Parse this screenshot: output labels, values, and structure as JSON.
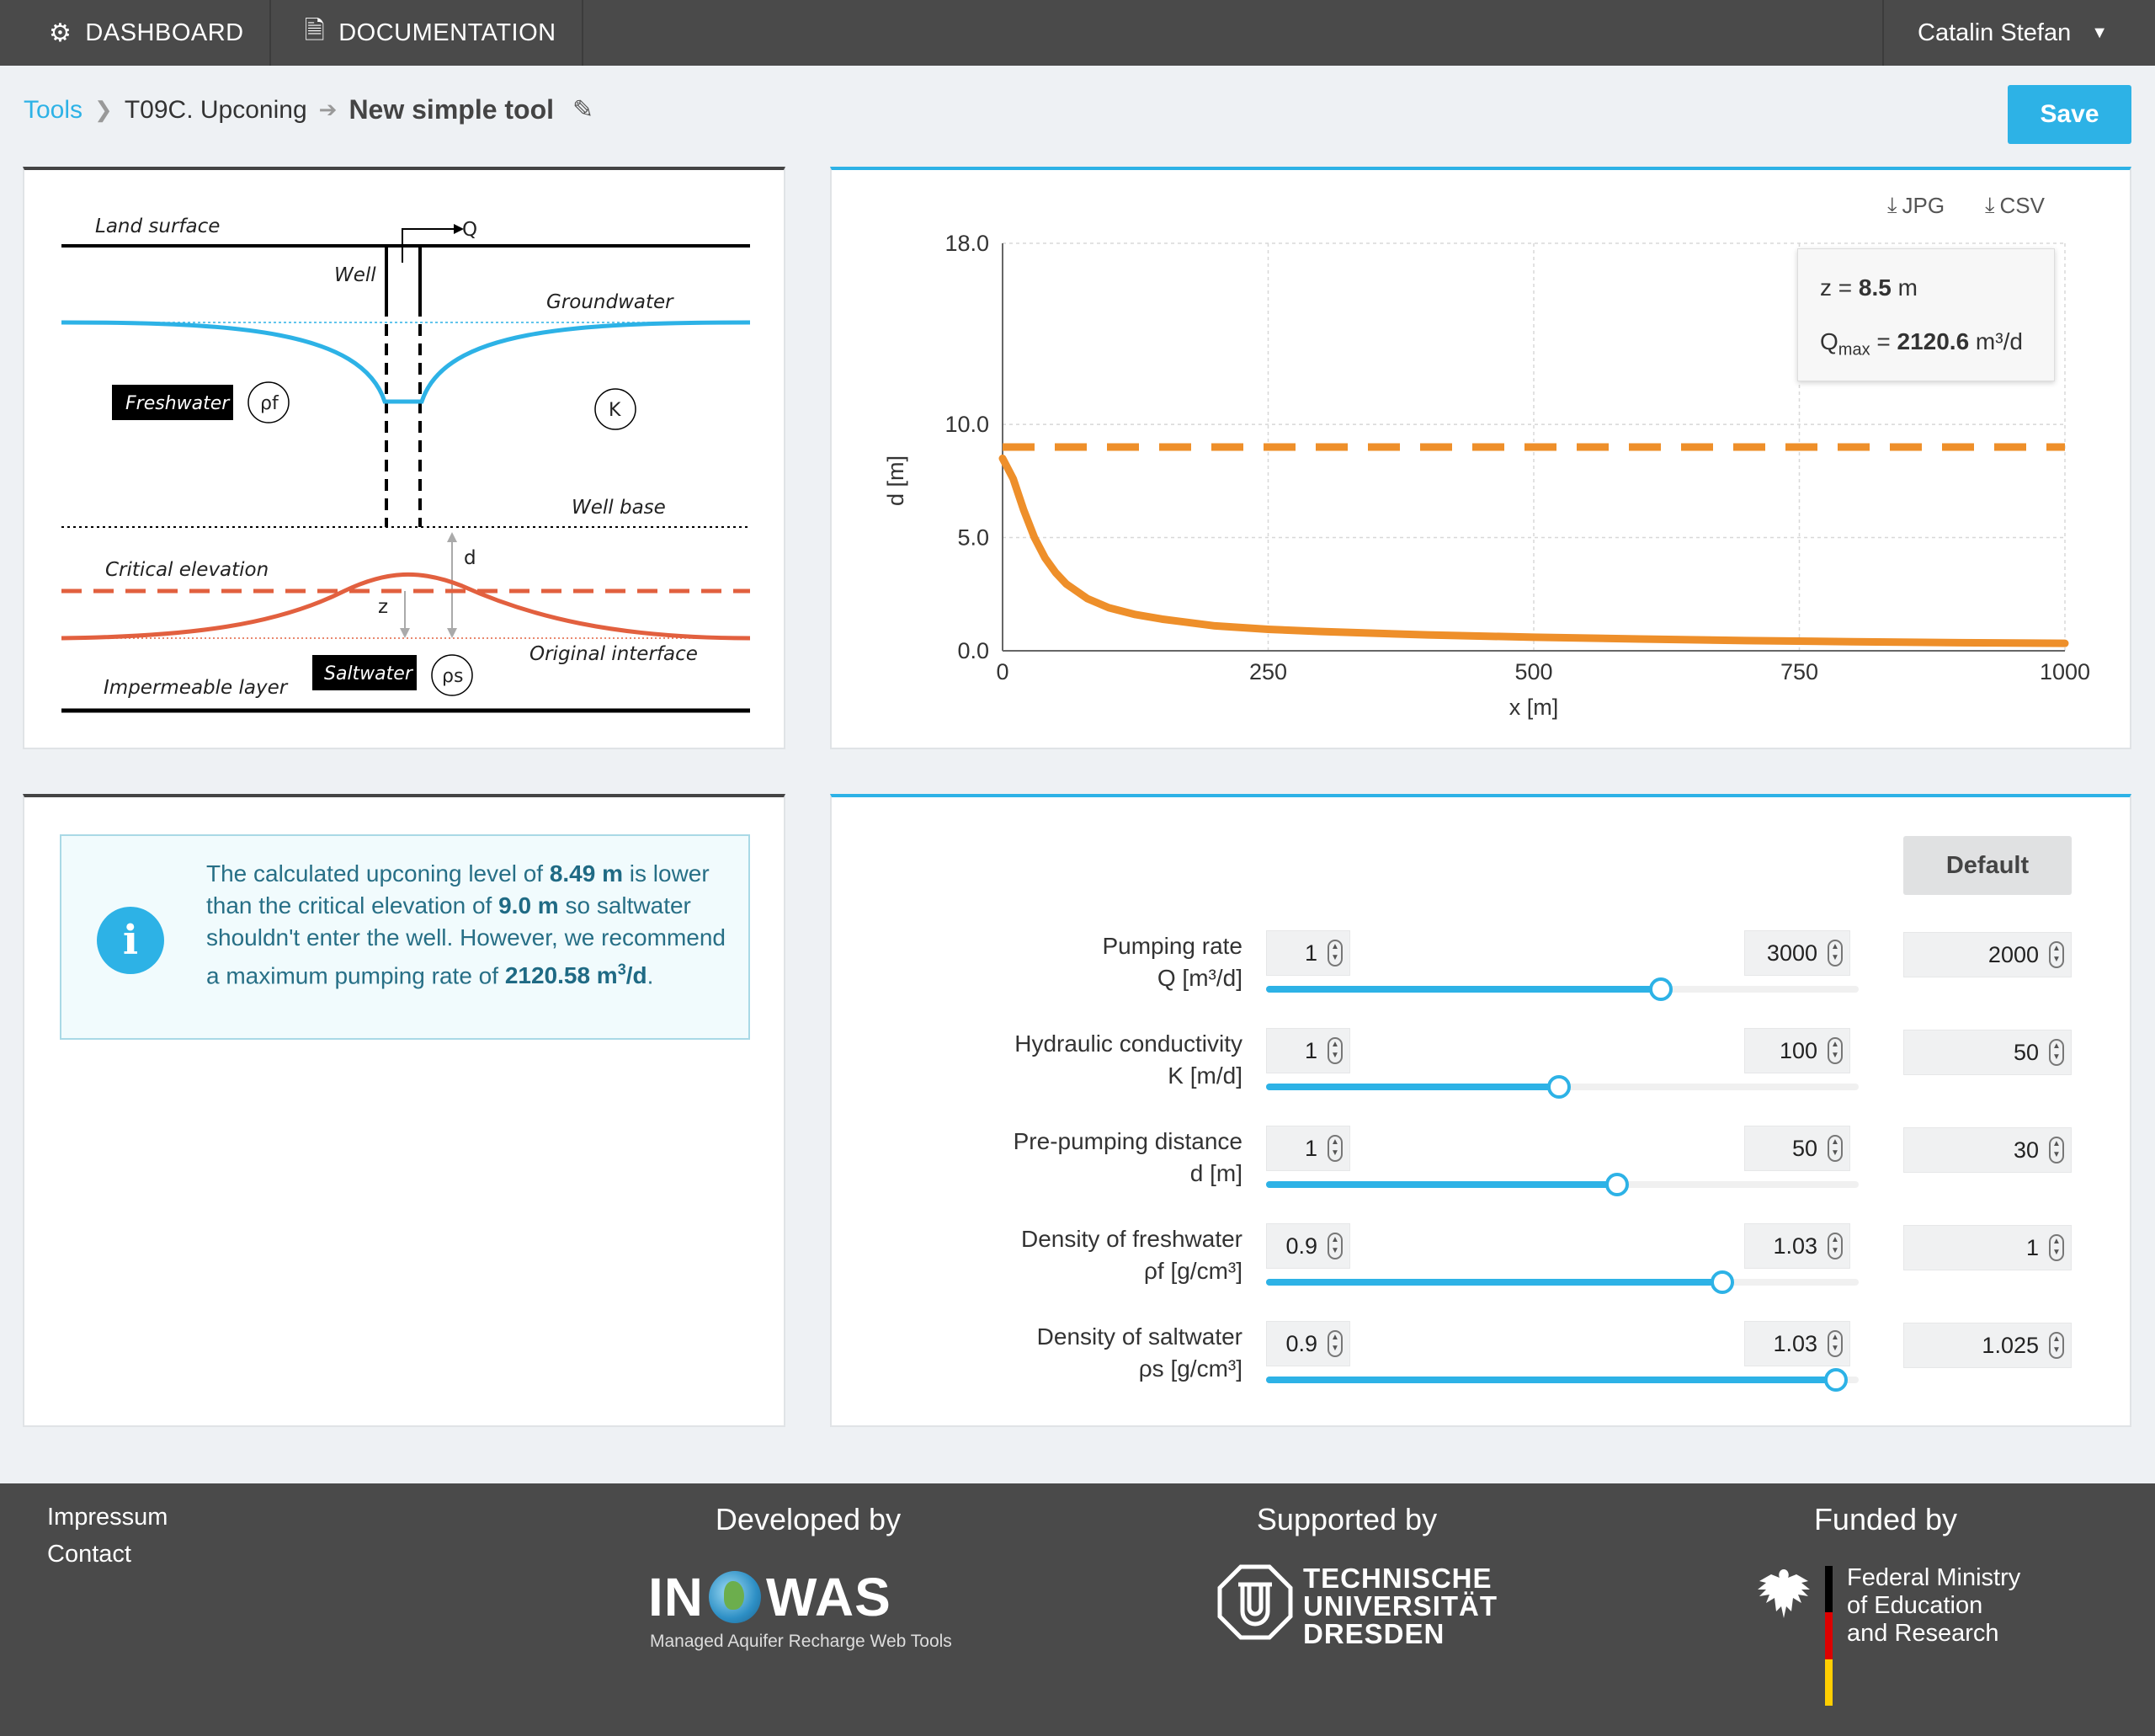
{
  "nav": {
    "dashboard": "DASHBOARD",
    "documentation": "DOCUMENTATION",
    "user": "Catalin Stefan",
    "icons": [
      "cogs-icon",
      "file-icon",
      "caret-down-icon"
    ]
  },
  "breadcrumb": {
    "tools": "Tools",
    "tool": "T09C. Upconing",
    "title": "New simple tool"
  },
  "save_label": "Save",
  "diagram": {
    "land_surface": "Land surface",
    "q": "Q",
    "well": "Well",
    "groundwater": "Groundwater",
    "freshwater": "Freshwater",
    "rho_f": "ρf",
    "k": "K",
    "well_base": "Well base",
    "d": "d",
    "critical_elevation": "Critical elevation",
    "z": "z",
    "original_interface": "Original interface",
    "saltwater": "Saltwater",
    "rho_s": "ρs",
    "impermeable_layer": "Impermeable layer"
  },
  "chart_actions": {
    "jpg": "JPG",
    "csv": "CSV"
  },
  "chart_tooltip": {
    "z_label": "z = ",
    "z_value": "8.5",
    "z_unit": " m",
    "q_label": "Q",
    "q_sub": "max",
    "q_eq": " = ",
    "q_value": "2120.6",
    "q_unit": " m³/d"
  },
  "chart_data": {
    "type": "line",
    "xlabel": "x [m]",
    "ylabel": "d [m]",
    "xlim": [
      0,
      1000
    ],
    "ylim": [
      0,
      18
    ],
    "x_ticks": [
      "0",
      "250",
      "500",
      "750",
      "1000"
    ],
    "y_ticks": [
      "0.0",
      "5.0",
      "10.0",
      "18.0"
    ],
    "y_tick_values": [
      0,
      5,
      10,
      18
    ],
    "grid": true,
    "series": [
      {
        "style": "solid",
        "x": [
          0,
          10,
          20,
          30,
          40,
          50,
          60,
          80,
          100,
          125,
          150,
          200,
          250,
          300,
          400,
          500,
          600,
          700,
          800,
          900,
          1000
        ],
        "y": [
          8.5,
          7.6,
          6.2,
          5.0,
          4.1,
          3.45,
          2.95,
          2.3,
          1.9,
          1.6,
          1.4,
          1.1,
          0.95,
          0.85,
          0.7,
          0.6,
          0.52,
          0.45,
          0.4,
          0.36,
          0.33
        ]
      },
      {
        "style": "dashed",
        "x": [
          0,
          1000
        ],
        "y": [
          9.0,
          9.0
        ]
      }
    ],
    "colors": {
      "curve": "#ee8f2a",
      "critical": "#ee8f2a"
    }
  },
  "info": {
    "t1": "The calculated upconing level of ",
    "v1": "8.49 m",
    "t2": " is lower than the critical elevation of ",
    "v2": "9.0 m",
    "t3": " so saltwater shouldn't enter the well. However, we recommend a maximum pumping rate of ",
    "v3": "2120.58 m",
    "v3_sup": "3",
    "v3_end": "/d",
    "t4": "."
  },
  "default_label": "Default",
  "params": [
    {
      "label": "Pumping rate",
      "unit": "Q [m³/d]",
      "min": "1",
      "max": "3000",
      "value": "2000",
      "fraction": 0.6664
    },
    {
      "label": "Hydraulic conductivity",
      "unit": "K [m/d]",
      "min": "1",
      "max": "100",
      "value": "50",
      "fraction": 0.4949
    },
    {
      "label": "Pre-pumping distance",
      "unit": "d [m]",
      "min": "1",
      "max": "50",
      "value": "30",
      "fraction": 0.5918
    },
    {
      "label": "Density of freshwater",
      "unit": "ρf [g/cm³]",
      "min": "0.9",
      "max": "1.03",
      "value": "1",
      "fraction": 0.7692
    },
    {
      "label": "Density of saltwater",
      "unit": "ρs [g/cm³]",
      "min": "0.9",
      "max": "1.03",
      "value": "1.025",
      "fraction": 0.9615
    }
  ],
  "footer": {
    "impressum": "Impressum",
    "contact": "Contact",
    "developed_by": "Developed by",
    "inowas_left": "IN",
    "inowas_right": "WAS",
    "inowas_sub": "Managed Aquifer Recharge Web Tools",
    "supported_by": "Supported by",
    "tud_1": "TECHNISCHE",
    "tud_2": "UNIVERSITÄT",
    "tud_3": "DRESDEN",
    "funded_by": "Funded by",
    "bmbf_1": "Federal Ministry",
    "bmbf_2": "of Education",
    "bmbf_3": "and Research"
  }
}
